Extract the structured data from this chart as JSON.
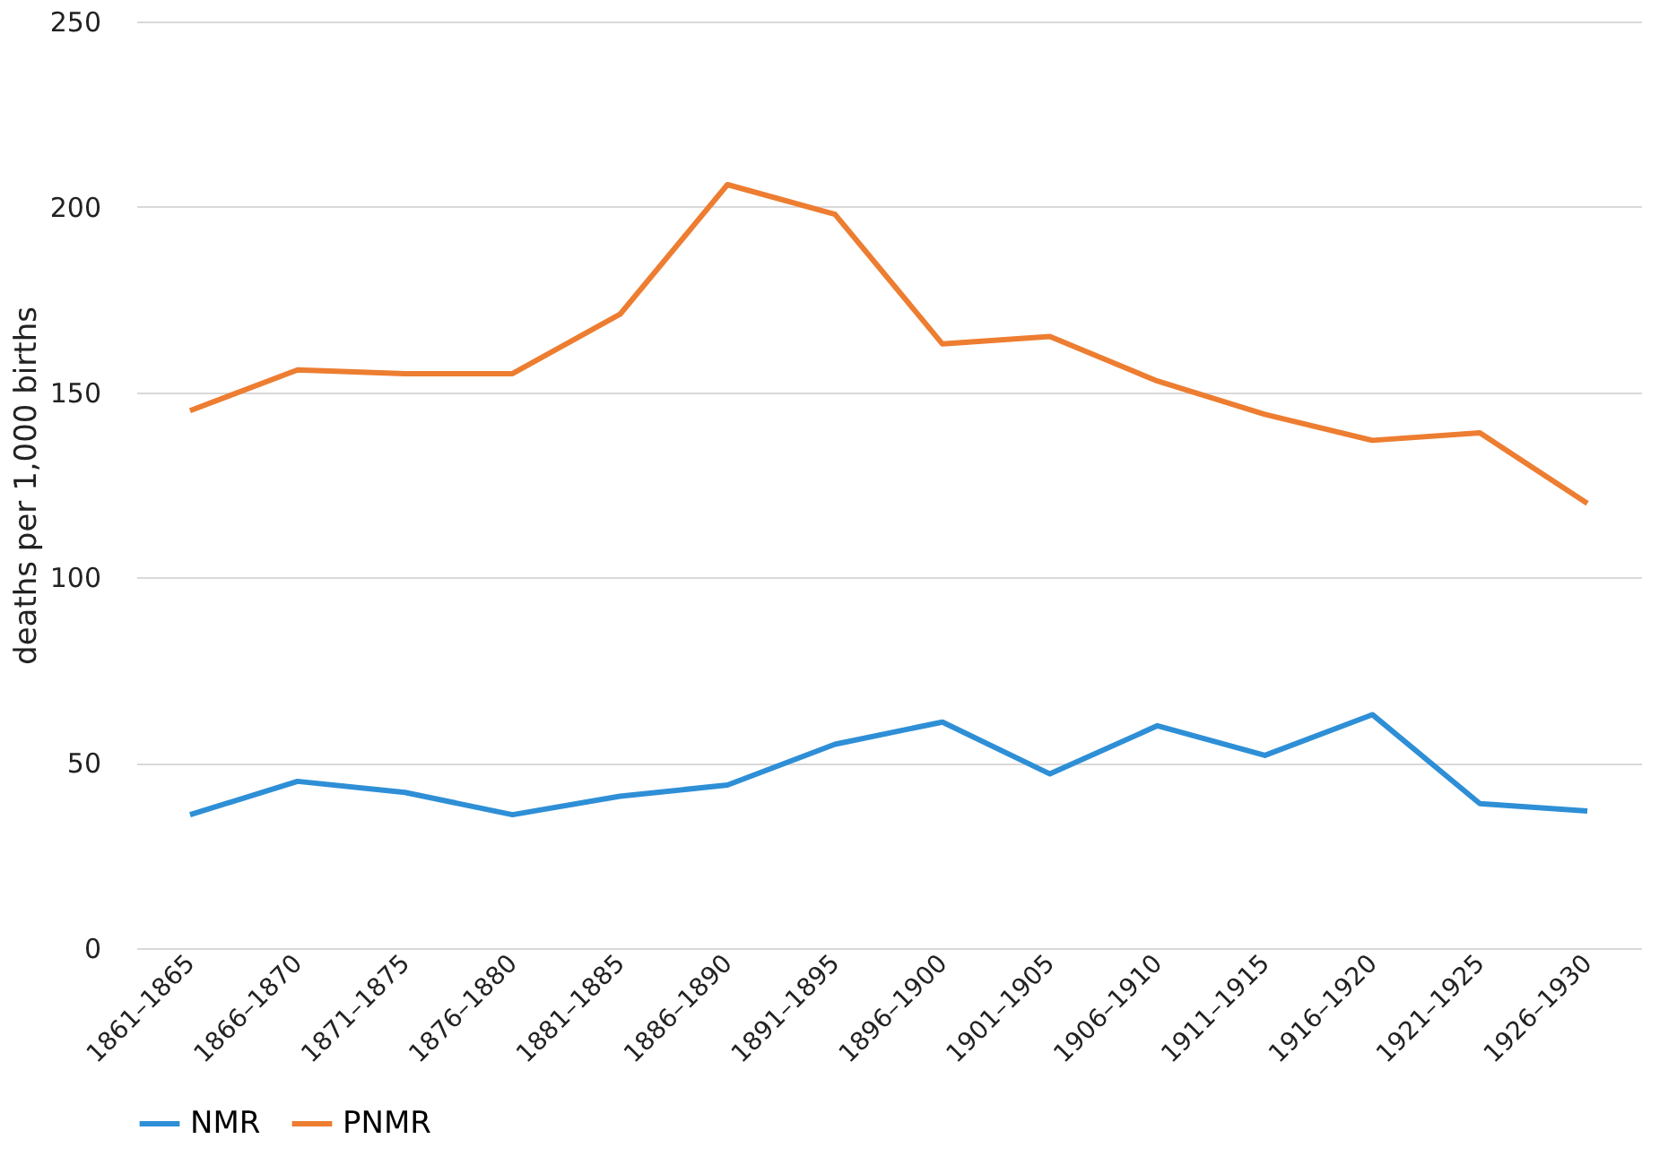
{
  "chart_data": {
    "type": "line",
    "ylabel": "deaths per 1,000 births",
    "categories": [
      "1861–1865",
      "1866–1870",
      "1871–1875",
      "1876–1880",
      "1881–1885",
      "1886–1890",
      "1891–1895",
      "1896–1900",
      "1901–1905",
      "1906–1910",
      "1911–1915",
      "1916–1920",
      "1921–1925",
      "1926–1930"
    ],
    "series": [
      {
        "name": "NMR",
        "color": "#2e8fd6",
        "values": [
          36,
          45,
          42,
          36,
          41,
          44,
          55,
          61,
          47,
          60,
          52,
          63,
          39,
          37
        ]
      },
      {
        "name": "PNMR",
        "color": "#ed7d31",
        "values": [
          145,
          156,
          155,
          155,
          171,
          206,
          198,
          163,
          165,
          153,
          144,
          137,
          139,
          120
        ]
      }
    ],
    "ylim": [
      0,
      250
    ],
    "yticks": [
      0,
      50,
      100,
      150,
      200,
      250
    ],
    "grid": "y",
    "legend": "bottom",
    "marker": "none",
    "line_style": "solid"
  }
}
